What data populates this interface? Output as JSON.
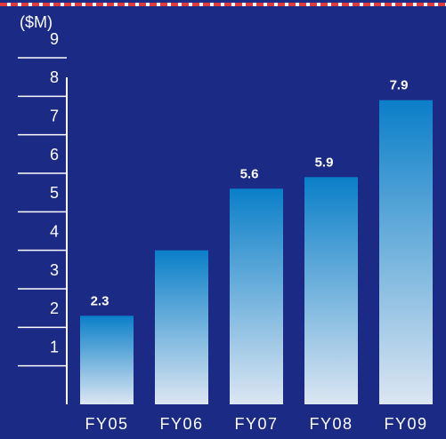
{
  "chart_data": {
    "type": "bar",
    "y_label": "($M)",
    "categories": [
      "FY05",
      "FY06",
      "FY07",
      "FY08",
      "FY09"
    ],
    "values": [
      2.3,
      4.0,
      5.6,
      5.9,
      7.9
    ],
    "value_labels": [
      "2.3",
      null,
      "5.6",
      "5.9",
      "7.9"
    ],
    "ylim": [
      0,
      9
    ],
    "yticks": [
      1,
      2,
      3,
      4,
      5,
      6,
      7,
      8,
      9
    ],
    "grid": true
  }
}
